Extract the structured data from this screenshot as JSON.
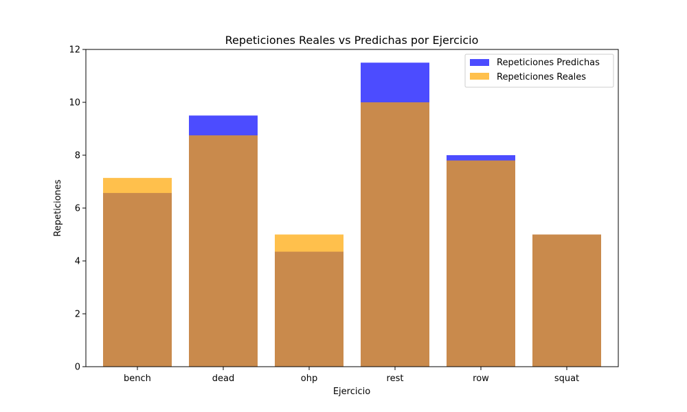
{
  "chart_data": {
    "type": "bar",
    "title": "Repeticiones Reales vs Predichas por Ejercicio",
    "xlabel": "Ejercicio",
    "ylabel": "Repeticiones",
    "categories": [
      "bench",
      "dead",
      "ohp",
      "rest",
      "row",
      "squat"
    ],
    "ylim": [
      0,
      12
    ],
    "yticks": [
      0,
      2,
      4,
      6,
      8,
      10,
      12
    ],
    "grid": false,
    "legend_position": "top-right",
    "series": [
      {
        "name": "Repeticiones Predichas",
        "color": "#0000ff",
        "opacity": 0.7,
        "values": [
          6.57,
          9.5,
          4.35,
          11.5,
          8.0,
          5.0
        ]
      },
      {
        "name": "Repeticiones Reales",
        "color": "#ffa500",
        "opacity": 0.7,
        "values": [
          7.14,
          8.75,
          5.0,
          10.0,
          7.8,
          5.0
        ]
      }
    ]
  }
}
